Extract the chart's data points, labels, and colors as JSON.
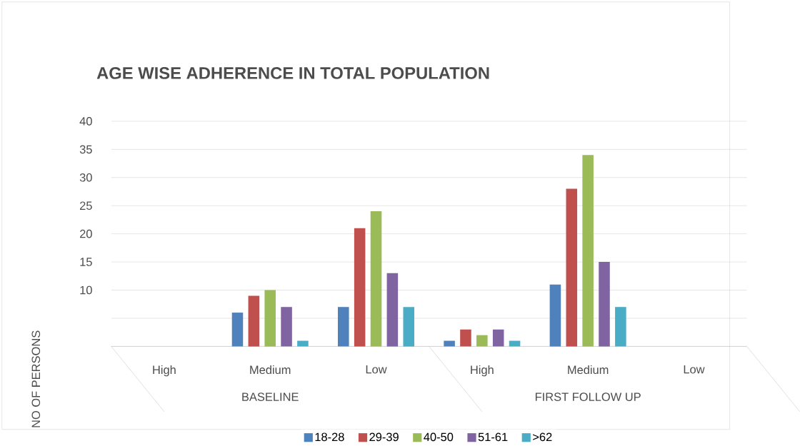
{
  "chart_data": {
    "type": "bar",
    "title": "AGE WISE  ADHERENCE IN TOTAL POPULATION",
    "ylabel": "NO OF PERSONS",
    "categories": [
      "High",
      "Medium",
      "Low",
      "High",
      "Medium",
      "Low"
    ],
    "annotations": [
      "BASELINE",
      "FIRST FOLLOW UP"
    ],
    "series": [
      {
        "name": "18-28",
        "color": "#4f81bd",
        "values": [
          0,
          6,
          7,
          1,
          11,
          0
        ]
      },
      {
        "name": "29-39",
        "color": "#c0504d",
        "values": [
          0,
          9,
          21,
          3,
          28,
          0
        ]
      },
      {
        "name": "40-50",
        "color": "#9bbb59",
        "values": [
          0,
          10,
          24,
          2,
          34,
          0
        ]
      },
      {
        "name": "51-61",
        "color": "#8064a2",
        "values": [
          0,
          7,
          13,
          3,
          15,
          0
        ]
      },
      {
        "name": ">62",
        "color": "#4bacc6",
        "values": [
          0,
          1,
          7,
          1,
          7,
          0
        ]
      }
    ],
    "ylim": [
      0,
      40
    ],
    "yticks": [
      {
        "value": 0,
        "label": null
      },
      {
        "value": 5,
        "label": null
      },
      10,
      15,
      20,
      25,
      30,
      35,
      40
    ],
    "grid": "y",
    "legend": "bottom"
  }
}
